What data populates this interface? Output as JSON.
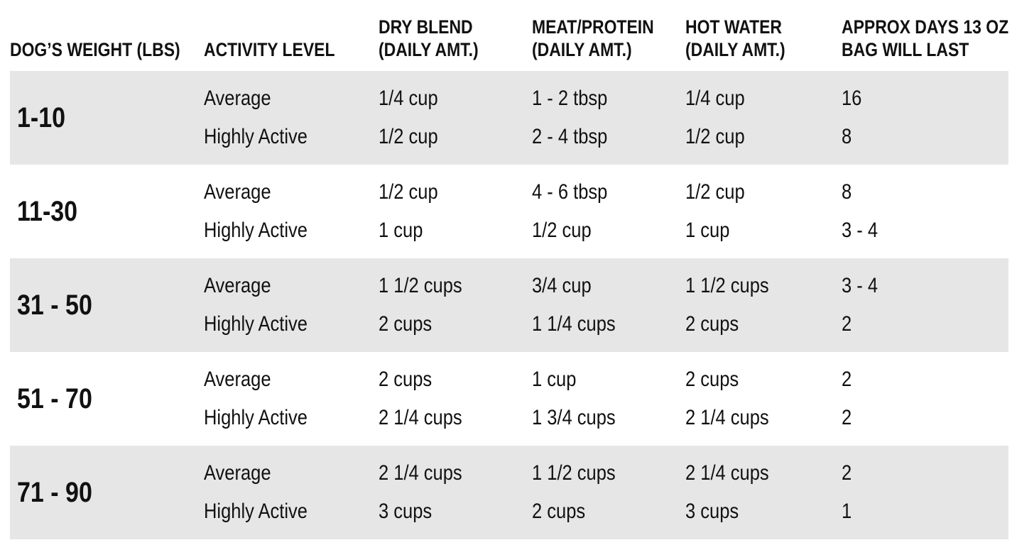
{
  "colors": {
    "stripe": "#e6e6e6",
    "background": "#ffffff",
    "text": "#111111"
  },
  "header": {
    "cols": [
      {
        "lines": [
          "DOG’S WEIGHT (LBS)"
        ]
      },
      {
        "lines": [
          "ACTIVITY LEVEL"
        ]
      },
      {
        "lines": [
          "DRY BLEND",
          "(DAILY AMT.)"
        ]
      },
      {
        "lines": [
          "MEAT/PROTEIN",
          "(DAILY AMT.)"
        ]
      },
      {
        "lines": [
          "HOT WATER",
          "(DAILY AMT.)"
        ]
      },
      {
        "lines": [
          "APPROX DAYS 13 OZ",
          "BAG WILL LAST"
        ]
      }
    ]
  },
  "chart_data": {
    "type": "table",
    "title": "Dog feeding guide",
    "columns": [
      "DOG’S WEIGHT (LBS)",
      "ACTIVITY LEVEL",
      "DRY BLEND (DAILY AMT.)",
      "MEAT/PROTEIN (DAILY AMT.)",
      "HOT WATER (DAILY AMT.)",
      "APPROX DAYS 13 OZ BAG WILL LAST"
    ],
    "rows": [
      [
        "1-10",
        "Average",
        "1/4 cup",
        "1 - 2 tbsp",
        "1/4 cup",
        "16"
      ],
      [
        "1-10",
        "Highly Active",
        "1/2 cup",
        "2 - 4 tbsp",
        "1/2 cup",
        "8"
      ],
      [
        "11-30",
        "Average",
        "1/2 cup",
        "4 - 6 tbsp",
        "1/2 cup",
        "8"
      ],
      [
        "11-30",
        "Highly Active",
        "1 cup",
        "1/2 cup",
        "1 cup",
        "3 - 4"
      ],
      [
        "31 - 50",
        "Average",
        "1 1/2 cups",
        "3/4 cup",
        "1 1/2 cups",
        "3 - 4"
      ],
      [
        "31 - 50",
        "Highly Active",
        "2 cups",
        "1 1/4 cups",
        "2 cups",
        "2"
      ],
      [
        "51 - 70",
        "Average",
        "2 cups",
        "1 cup",
        "2 cups",
        "2"
      ],
      [
        "51 - 70",
        "Highly Active",
        "2 1/4 cups",
        "1 3/4 cups",
        "2 1/4 cups",
        "2"
      ],
      [
        "71 - 90",
        "Average",
        "2 1/4 cups",
        "1 1/2 cups",
        "2 1/4 cups",
        "2"
      ],
      [
        "71 - 90",
        "Highly Active",
        "3 cups",
        "2 cups",
        "3 cups",
        "1"
      ]
    ],
    "layout": {
      "row_striping": "weight groups alternate gray/white starting gray",
      "rows_per_weight_group": 2
    }
  }
}
